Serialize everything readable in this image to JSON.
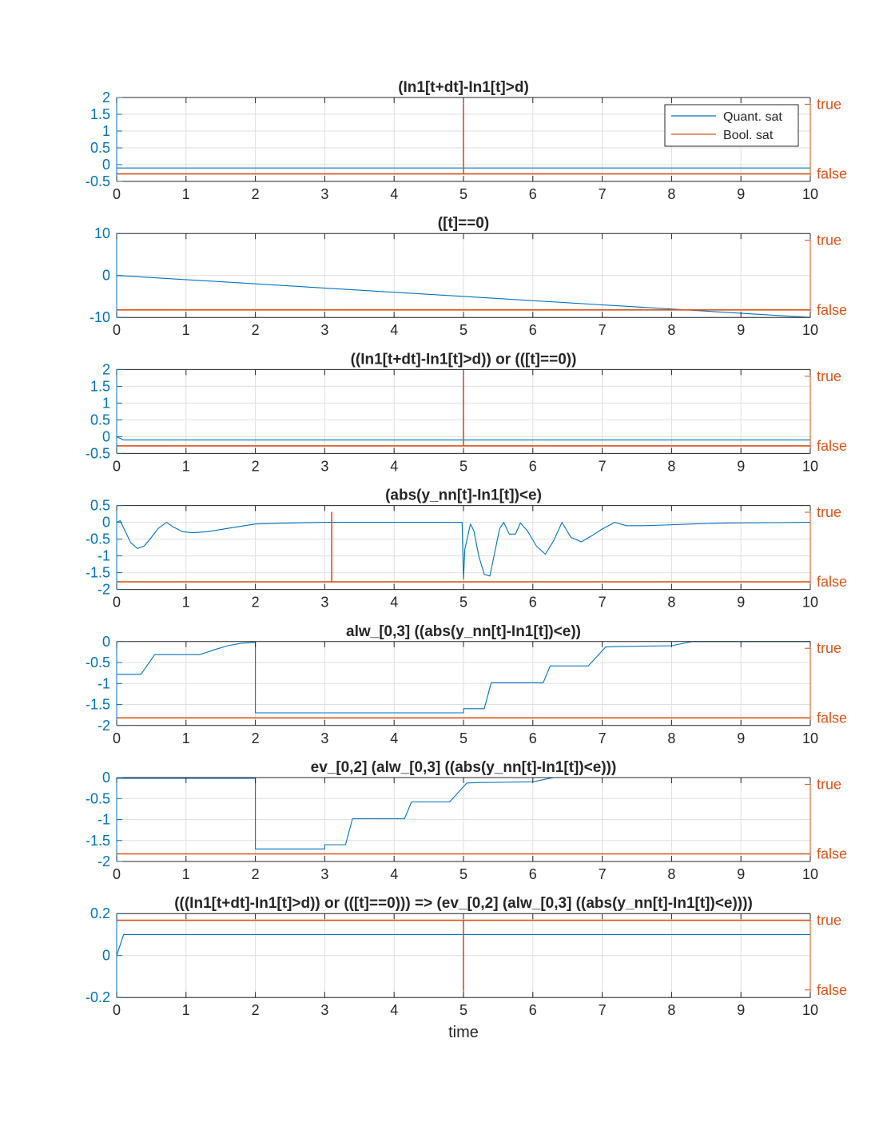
{
  "colors": {
    "quant": "#0072BD",
    "bool": "#D95319",
    "axis": "#262626",
    "grid": "#dfdfdf"
  },
  "legend": {
    "entries": [
      "Quant. sat",
      "Bool. sat"
    ],
    "placement": "top-right"
  },
  "chart_data": [
    {
      "type": "line",
      "title": "(In1[t+dt]-In1[t]>d)",
      "xlim": [
        0,
        10
      ],
      "ylim": [
        -0.5,
        2
      ],
      "xticks": [
        "0",
        "1",
        "2",
        "3",
        "4",
        "5",
        "6",
        "7",
        "8",
        "9",
        "10"
      ],
      "yticks_left": [
        "2",
        "1.5",
        "1",
        "0.5",
        "0",
        "-0.5"
      ],
      "yticks_right": [
        "true",
        "false"
      ],
      "grid": true,
      "series": [
        {
          "name": "Quant. sat",
          "x": [
            0,
            5,
            5,
            5,
            10
          ],
          "y": [
            -0.1,
            -0.1,
            1.9,
            -0.1,
            -0.1
          ]
        },
        {
          "name": "Bool. sat",
          "x": [
            0,
            5,
            5,
            5,
            10
          ],
          "y": [
            "false",
            "false",
            "true",
            "false",
            "false"
          ]
        }
      ]
    },
    {
      "type": "line",
      "title": "([t]==0)",
      "xlim": [
        0,
        10
      ],
      "ylim": [
        -10,
        10
      ],
      "xticks": [
        "0",
        "1",
        "2",
        "3",
        "4",
        "5",
        "6",
        "7",
        "8",
        "9",
        "10"
      ],
      "yticks_left": [
        "10",
        "0",
        "-10"
      ],
      "yticks_right": [
        "true",
        "false"
      ],
      "grid": true,
      "series": [
        {
          "name": "Quant. sat",
          "x": [
            0,
            10
          ],
          "y": [
            0,
            -10
          ]
        },
        {
          "name": "Bool. sat",
          "x": [
            0,
            10
          ],
          "y": [
            "false",
            "false"
          ]
        }
      ]
    },
    {
      "type": "line",
      "title": "((In1[t+dt]-In1[t]>d)) or (([t]==0))",
      "xlim": [
        0,
        10
      ],
      "ylim": [
        -0.5,
        2
      ],
      "xticks": [
        "0",
        "1",
        "2",
        "3",
        "4",
        "5",
        "6",
        "7",
        "8",
        "9",
        "10"
      ],
      "yticks_left": [
        "2",
        "1.5",
        "1",
        "0.5",
        "0",
        "-0.5"
      ],
      "yticks_right": [
        "true",
        "false"
      ],
      "grid": true,
      "series": [
        {
          "name": "Quant. sat",
          "x": [
            0,
            0.1,
            5,
            5,
            5,
            10
          ],
          "y": [
            0,
            -0.1,
            -0.1,
            1.9,
            -0.1,
            -0.1
          ]
        },
        {
          "name": "Bool. sat",
          "x": [
            0,
            5,
            5,
            5,
            10
          ],
          "y": [
            "false",
            "false",
            "true",
            "false",
            "false"
          ]
        }
      ]
    },
    {
      "type": "line",
      "title": "(abs(y_nn[t]-In1[t])<e)",
      "xlim": [
        0,
        10
      ],
      "ylim": [
        -2,
        0.5
      ],
      "xticks": [
        "0",
        "1",
        "2",
        "3",
        "4",
        "5",
        "6",
        "7",
        "8",
        "9",
        "10"
      ],
      "yticks_left": [
        "0.5",
        "0",
        "-0.5",
        "-1",
        "-1.5",
        "-2"
      ],
      "yticks_right": [
        "true",
        "false"
      ],
      "grid": true,
      "series": [
        {
          "name": "Quant. sat",
          "x": [
            0,
            0.05,
            0.12,
            0.2,
            0.3,
            0.4,
            0.5,
            0.6,
            0.72,
            0.8,
            0.95,
            1.1,
            1.3,
            1.6,
            2.0,
            2.5,
            3.0,
            3.5,
            4.0,
            4.5,
            4.98,
            5.0,
            5.02,
            5.1,
            5.15,
            5.22,
            5.3,
            5.38,
            5.45,
            5.52,
            5.58,
            5.66,
            5.75,
            5.82,
            5.92,
            6.05,
            6.18,
            6.3,
            6.42,
            6.55,
            6.7,
            6.85,
            7.0,
            7.18,
            7.35,
            7.6,
            7.9,
            8.3,
            8.8,
            9.5,
            10.0
          ],
          "y": [
            0,
            0.05,
            -0.25,
            -0.6,
            -0.78,
            -0.7,
            -0.45,
            -0.18,
            0,
            -0.12,
            -0.28,
            -0.31,
            -0.28,
            -0.18,
            -0.05,
            -0.02,
            0,
            0,
            0,
            0,
            0,
            -1.7,
            -0.8,
            -0.05,
            -0.25,
            -1.0,
            -1.55,
            -1.6,
            -0.9,
            -0.2,
            0,
            -0.35,
            -0.35,
            -0.02,
            -0.25,
            -0.7,
            -0.95,
            -0.55,
            0,
            -0.45,
            -0.58,
            -0.4,
            -0.2,
            0,
            -0.1,
            -0.1,
            -0.08,
            -0.05,
            -0.02,
            -0.01,
            0
          ]
        },
        {
          "name": "Bool. sat",
          "x": [
            0,
            3.1,
            3.1,
            3.1,
            10
          ],
          "y": [
            "false",
            "false",
            "true",
            "false",
            "false"
          ]
        }
      ]
    },
    {
      "type": "line",
      "title": "alw_[0,3] ((abs(y_nn[t]-In1[t])<e))",
      "xlim": [
        0,
        10
      ],
      "ylim": [
        -2,
        0
      ],
      "xticks": [
        "0",
        "1",
        "2",
        "3",
        "4",
        "5",
        "6",
        "7",
        "8",
        "9",
        "10"
      ],
      "yticks_left": [
        "0",
        "-0.5",
        "-1",
        "-1.5",
        "-2"
      ],
      "yticks_right": [
        "true",
        "false"
      ],
      "grid": true,
      "series": [
        {
          "name": "Quant. sat",
          "x": [
            0,
            0.35,
            0.55,
            1.2,
            1.4,
            1.6,
            1.8,
            2.0,
            2.0,
            5.0,
            5.0,
            5.3,
            5.4,
            6.15,
            6.25,
            6.8,
            6.9,
            7.05,
            7.2,
            8.0,
            8.3,
            10.0
          ],
          "y": [
            -0.78,
            -0.78,
            -0.31,
            -0.31,
            -0.2,
            -0.1,
            -0.04,
            -0.02,
            -1.7,
            -1.7,
            -1.6,
            -1.6,
            -0.98,
            -0.98,
            -0.58,
            -0.58,
            -0.4,
            -0.13,
            -0.12,
            -0.1,
            0,
            0
          ]
        },
        {
          "name": "Bool. sat",
          "x": [
            0,
            10
          ],
          "y": [
            "false",
            "false"
          ]
        }
      ]
    },
    {
      "type": "line",
      "title": "ev_[0,2] (alw_[0,3] ((abs(y_nn[t]-In1[t])<e)))",
      "xlim": [
        0,
        10
      ],
      "ylim": [
        -2,
        0
      ],
      "xticks": [
        "0",
        "1",
        "2",
        "3",
        "4",
        "5",
        "6",
        "7",
        "8",
        "9",
        "10"
      ],
      "yticks_left": [
        "0",
        "-0.5",
        "-1",
        "-1.5",
        "-2"
      ],
      "yticks_right": [
        "true",
        "false"
      ],
      "grid": true,
      "series": [
        {
          "name": "Quant. sat",
          "x": [
            0,
            2.0,
            2.0,
            3.0,
            3.0,
            3.3,
            3.4,
            4.15,
            4.25,
            4.8,
            4.9,
            5.05,
            5.2,
            6.0,
            6.3,
            10.0
          ],
          "y": [
            -0.02,
            -0.02,
            -1.7,
            -1.7,
            -1.6,
            -1.6,
            -0.98,
            -0.98,
            -0.58,
            -0.58,
            -0.4,
            -0.13,
            -0.12,
            -0.1,
            0,
            0
          ]
        },
        {
          "name": "Bool. sat",
          "x": [
            0,
            10
          ],
          "y": [
            "false",
            "false"
          ]
        }
      ]
    },
    {
      "type": "line",
      "title": "(((In1[t+dt]-In1[t]>d)) or (([t]==0))) => (ev_[0,2] (alw_[0,3] ((abs(y_nn[t]-In1[t])<e))))",
      "xlim": [
        0,
        10
      ],
      "ylim": [
        -0.2,
        0.2
      ],
      "xticks": [
        "0",
        "1",
        "2",
        "3",
        "4",
        "5",
        "6",
        "7",
        "8",
        "9",
        "10"
      ],
      "yticks_left": [
        "0.2",
        "0",
        "-0.2"
      ],
      "yticks_right": [
        "true",
        "false"
      ],
      "xlabel": "time",
      "grid": true,
      "series": [
        {
          "name": "Quant. sat",
          "x": [
            0,
            0.1,
            5,
            5,
            5,
            10
          ],
          "y": [
            0,
            0.1,
            0.1,
            -0.2,
            0.1,
            0.1
          ]
        },
        {
          "name": "Bool. sat",
          "x": [
            0,
            5,
            5,
            5,
            10
          ],
          "y": [
            "true",
            "true",
            "false",
            "true",
            "true"
          ]
        }
      ]
    }
  ]
}
